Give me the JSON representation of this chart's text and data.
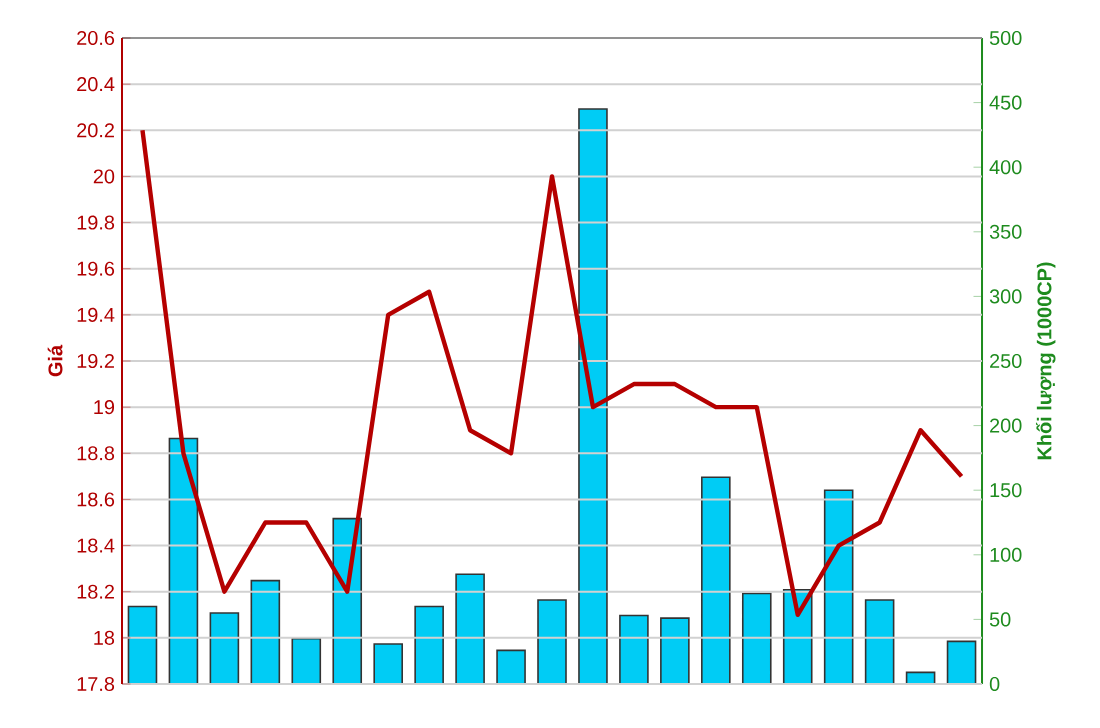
{
  "chart_data": {
    "type": "bar",
    "ylabel": "Giá",
    "y2label": "Khối lượng (1000CP)",
    "categories": [
      null,
      null,
      null,
      null,
      null,
      null,
      null,
      null,
      null,
      null,
      null,
      null,
      null,
      null,
      null,
      null,
      null,
      null,
      null,
      null,
      null
    ],
    "series": [
      {
        "axis": "y2",
        "color": "#00ccf5",
        "values": [
          60,
          190,
          55,
          80,
          35,
          128,
          31,
          60,
          85,
          26,
          65,
          445,
          53,
          51,
          160,
          70,
          73,
          150,
          65,
          9,
          33
        ]
      },
      {
        "type": "line",
        "axis": "y",
        "color": "#b50000",
        "values": [
          20.2,
          18.8,
          18.2,
          18.5,
          18.5,
          18.2,
          19.4,
          19.5,
          18.9,
          18.8,
          20.0,
          19.0,
          19.1,
          19.1,
          19.0,
          19.0,
          18.1,
          18.4,
          18.5,
          18.9,
          18.7
        ]
      }
    ],
    "ylim": [
      17.8,
      20.6
    ],
    "yticks": [
      17.8,
      18,
      18.2,
      18.4,
      18.6,
      18.8,
      19,
      19.2,
      19.4,
      19.6,
      19.8,
      20,
      20.2,
      20.4,
      20.6
    ],
    "y2lim": [
      0,
      500
    ],
    "y2ticks": [
      0,
      50,
      100,
      150,
      200,
      250,
      300,
      350,
      400,
      450,
      500
    ],
    "grid": "y",
    "marker": "none",
    "line_style": "solid",
    "tick_labels": "y"
  }
}
